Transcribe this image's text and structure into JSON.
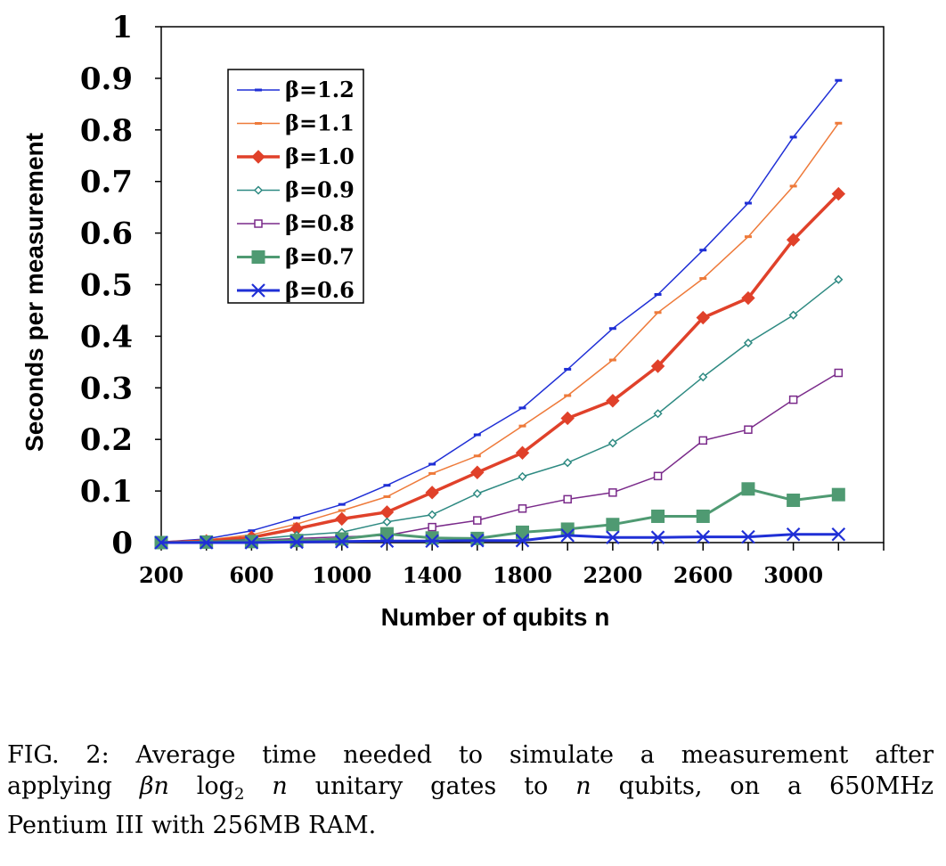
{
  "chart_data": {
    "type": "line",
    "xlabel": "Number of qubits n",
    "ylabel": "Seconds per measurement",
    "xlim": [
      200,
      3400
    ],
    "ylim": [
      0,
      1
    ],
    "xticks": [
      200,
      600,
      1000,
      1400,
      1800,
      2200,
      2600,
      3000
    ],
    "xtick_labels": [
      "200",
      "600",
      "1000",
      "1400",
      "1800",
      "2200",
      "2600",
      "3000"
    ],
    "yticks": [
      0,
      0.1,
      0.2,
      0.3,
      0.4,
      0.5,
      0.6,
      0.7,
      0.8,
      0.9,
      1
    ],
    "ytick_labels": [
      "0",
      "0.1",
      "0.2",
      "0.3",
      "0.4",
      "0.5",
      "0.6",
      "0.7",
      "0.8",
      "0.9",
      "1"
    ],
    "legend_position": "top-left",
    "grid": false,
    "x": [
      200,
      400,
      600,
      800,
      1000,
      1200,
      1400,
      1600,
      1800,
      2000,
      2200,
      2400,
      2600,
      2800,
      3000,
      3200
    ],
    "series": [
      {
        "name": "β=1.2",
        "color": "#1f2fd6",
        "marker": "dash",
        "stroke_width": 1.5,
        "values": [
          0.001,
          0.007,
          0.023,
          0.048,
          0.074,
          0.111,
          0.152,
          0.209,
          0.261,
          0.336,
          0.415,
          0.481,
          0.567,
          0.658,
          0.786,
          0.896
        ]
      },
      {
        "name": "β=1.1",
        "color": "#ee7a3a",
        "marker": "dash",
        "stroke_width": 1.5,
        "values": [
          0.001,
          0.005,
          0.015,
          0.036,
          0.062,
          0.089,
          0.134,
          0.168,
          0.226,
          0.285,
          0.354,
          0.446,
          0.512,
          0.593,
          0.691,
          0.813
        ]
      },
      {
        "name": "β=1.0",
        "color": "#e0412a",
        "marker": "diamond",
        "stroke_width": 3.5,
        "values": [
          0.0,
          0.003,
          0.01,
          0.027,
          0.046,
          0.059,
          0.097,
          0.136,
          0.174,
          0.241,
          0.275,
          0.342,
          0.436,
          0.474,
          0.587,
          0.676
        ]
      },
      {
        "name": "β=0.9",
        "color": "#2e8a82",
        "marker": "open-diamond",
        "stroke_width": 1.5,
        "values": [
          0.0,
          0.002,
          0.006,
          0.014,
          0.02,
          0.04,
          0.054,
          0.095,
          0.128,
          0.155,
          0.193,
          0.25,
          0.321,
          0.387,
          0.441,
          0.51
        ]
      },
      {
        "name": "β=0.8",
        "color": "#7a2a8a",
        "marker": "open-square",
        "stroke_width": 1.5,
        "values": [
          0.0,
          0.001,
          0.004,
          0.008,
          0.011,
          0.014,
          0.03,
          0.043,
          0.066,
          0.084,
          0.097,
          0.129,
          0.198,
          0.219,
          0.277,
          0.329
        ]
      },
      {
        "name": "β=0.7",
        "color": "#4f9a72",
        "marker": "square",
        "stroke_width": 3,
        "values": [
          0.0,
          0.001,
          0.002,
          0.004,
          0.007,
          0.017,
          0.009,
          0.008,
          0.02,
          0.026,
          0.035,
          0.051,
          0.051,
          0.104,
          0.082,
          0.093
        ]
      },
      {
        "name": "β=0.6",
        "color": "#1f2fd6",
        "marker": "x",
        "stroke_width": 3,
        "values": [
          0.0,
          0.0,
          0.0,
          0.001,
          0.002,
          0.003,
          0.003,
          0.004,
          0.004,
          0.014,
          0.01,
          0.01,
          0.011,
          0.011,
          0.016,
          0.016
        ]
      }
    ]
  },
  "caption": {
    "line1": "FIG. 2: Average time needed to simulate a measurement after",
    "line2_a": "applying",
    "line2_math_beta_n": "βn",
    "line2_log": "log",
    "line2_sub": "2",
    "line2_math_n": "n",
    "line2_b": "unitary gates to",
    "line2_math_n2": "n",
    "line2_c": "qubits, on a 650MHz",
    "line3": "Pentium III with 256MB RAM."
  }
}
